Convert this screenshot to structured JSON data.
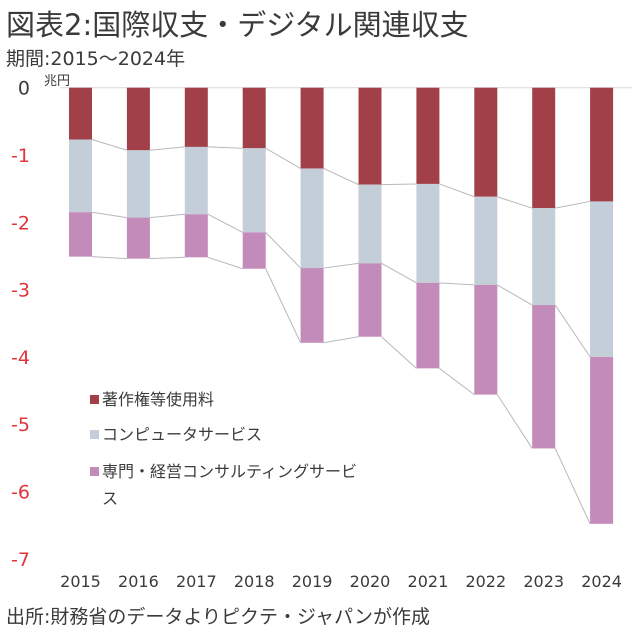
{
  "header": {
    "title": "図表2:国際収支・デジタル関連収支",
    "subtitle": "期間:2015〜2024年",
    "unit": "兆円"
  },
  "footer": {
    "source": "出所:財務省のデータよりピクテ・ジャパンが作成"
  },
  "chart_data": {
    "type": "bar",
    "stacked": true,
    "title": "図表2:国際収支・デジタル関連収支",
    "subtitle": "期間:2015〜2024年",
    "xlabel": "",
    "ylabel": "兆円",
    "ylim": [
      -7,
      0
    ],
    "yticks": [
      0,
      -1,
      -2,
      -3,
      -4,
      -5,
      -6,
      -7
    ],
    "ytick_labels": [
      "0",
      "-1",
      "-2",
      "-3",
      "-4",
      "-5",
      "-6",
      "-7"
    ],
    "categories": [
      "2015",
      "2016",
      "2017",
      "2018",
      "2019",
      "2020",
      "2021",
      "2022",
      "2023",
      "2024"
    ],
    "series": [
      {
        "name": "著作権等使用料",
        "color": "#a2404a",
        "values": [
          -0.77,
          -0.93,
          -0.88,
          -0.9,
          -1.2,
          -1.44,
          -1.43,
          -1.62,
          -1.79,
          -1.69
        ]
      },
      {
        "name": "コンピュータサービス",
        "color": "#c4ced9",
        "values": [
          -1.08,
          -1.0,
          -1.0,
          -1.25,
          -1.48,
          -1.17,
          -1.47,
          -1.31,
          -1.44,
          -2.31
        ]
      },
      {
        "name": "専門・経営コンサルティングサービス",
        "color": "#c28bba",
        "values": [
          -0.66,
          -0.61,
          -0.64,
          -0.54,
          -1.11,
          -1.09,
          -1.27,
          -1.63,
          -2.13,
          -2.48
        ]
      }
    ],
    "legend": {
      "position": "bottom-left",
      "lines": [
        [
          "著作権等使用料"
        ],
        [
          "コンピュータサービス"
        ],
        [
          "専門・経営コンサルティングサービ",
          "ス"
        ]
      ]
    },
    "colors": {
      "zero_tick": "#3b3b3b",
      "negative_tick": "#e0353a",
      "connector": "#b8b8b8",
      "gridline": "#d9d9d9"
    },
    "grid": false
  }
}
